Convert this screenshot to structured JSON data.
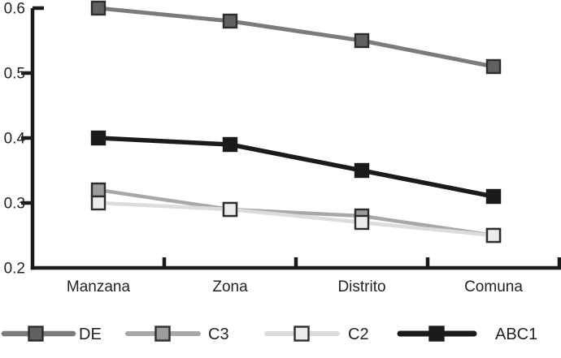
{
  "chart_data": {
    "type": "line",
    "title": "",
    "xlabel": "",
    "ylabel": "",
    "grid": false,
    "legend_position": "bottom",
    "categories": [
      "Manzana",
      "Zona",
      "Distrito",
      "Comuna"
    ],
    "series": [
      {
        "name": "DE",
        "values": [
          0.6,
          0.58,
          0.55,
          0.51
        ],
        "line_color": "#7b7b7b",
        "marker_fill": "#616161",
        "marker_border": "#2d2d2d"
      },
      {
        "name": "C3",
        "values": [
          0.32,
          0.29,
          0.28,
          0.25
        ],
        "line_color": "#a8a8a8",
        "marker_fill": "#9c9c9c",
        "marker_border": "#2d2d2d"
      },
      {
        "name": "C2",
        "values": [
          0.3,
          0.29,
          0.27,
          0.25
        ],
        "line_color": "#dcdcdc",
        "marker_fill": "#ececec",
        "marker_border": "#2d2d2d"
      },
      {
        "name": "ABC1",
        "values": [
          0.4,
          0.39,
          0.35,
          0.31
        ],
        "line_color": "#1b1b1b",
        "marker_fill": "#1b1b1b",
        "marker_border": "#1b1b1b"
      }
    ],
    "ylim": [
      0.2,
      0.6
    ],
    "yticks": [
      {
        "value": 0.2,
        "label": "0.2"
      },
      {
        "value": 0.3,
        "label": "0.3"
      },
      {
        "value": 0.4,
        "label": "0.4"
      },
      {
        "value": 0.5,
        "label": "0.5"
      },
      {
        "value": 0.6,
        "label": "0.6"
      }
    ],
    "axis_color": "#1a1a1a",
    "legend": [
      "DE",
      "C3",
      "C2",
      "ABC1"
    ]
  }
}
